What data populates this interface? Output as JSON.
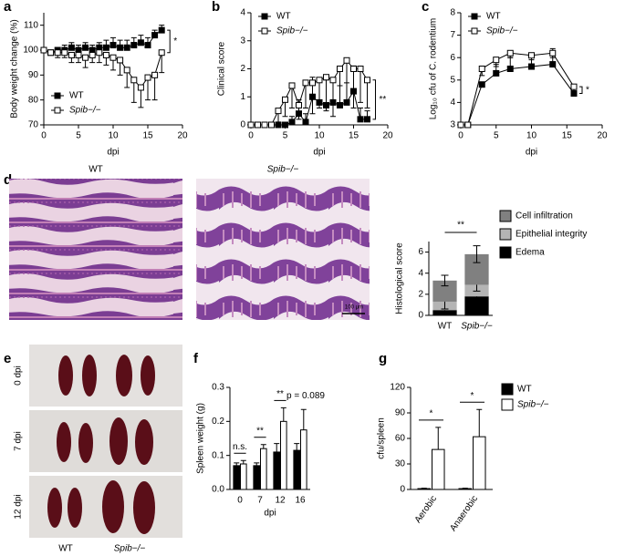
{
  "chart_data": [
    {
      "type": "line",
      "panel_label": "a",
      "ylabel": "Body weight change (%)",
      "xlabel": "dpi",
      "x": [
        0,
        1,
        2,
        3,
        4,
        5,
        6,
        7,
        8,
        9,
        10,
        11,
        12,
        13,
        14,
        15,
        16,
        17
      ],
      "xlim": [
        0,
        20
      ],
      "xticks": [
        0,
        5,
        10,
        15,
        20
      ],
      "ylim": [
        70,
        115
      ],
      "yticks": [
        70,
        80,
        90,
        100,
        110
      ],
      "legend": "lower left",
      "annotations": [
        "*"
      ],
      "series": [
        {
          "name": "WT",
          "color": "#000000",
          "marker_fill": "#000000",
          "values": [
            100,
            99,
            100,
            100,
            101,
            100,
            101,
            100,
            101,
            101,
            102,
            101,
            101,
            102,
            103,
            102,
            106,
            108
          ],
          "errors": [
            1,
            1,
            1,
            2,
            2,
            2,
            2,
            2,
            2,
            3,
            3,
            3,
            3,
            3,
            3,
            3,
            2,
            2
          ]
        },
        {
          "name": "Spib−/−",
          "color": "#000000",
          "marker_fill": "#ffffff",
          "values": [
            100,
            99,
            99,
            99,
            98,
            98,
            97,
            98,
            99,
            98,
            97,
            96,
            92,
            88,
            85,
            89,
            90,
            99
          ],
          "errors": [
            1,
            1,
            2,
            2,
            3,
            3,
            4,
            3,
            4,
            4,
            5,
            6,
            7,
            9,
            8,
            9,
            10,
            8
          ]
        }
      ]
    },
    {
      "type": "line",
      "panel_label": "b",
      "ylabel": "Clinical score",
      "xlabel": "dpi",
      "x": [
        0,
        1,
        2,
        3,
        4,
        5,
        6,
        7,
        8,
        9,
        10,
        11,
        12,
        13,
        14,
        15,
        16,
        17
      ],
      "xlim": [
        0,
        20
      ],
      "xticks": [
        0,
        5,
        10,
        15,
        20
      ],
      "ylim": [
        0,
        4
      ],
      "yticks": [
        0,
        1,
        2,
        3,
        4
      ],
      "legend": "upper left",
      "annotations": [
        "**"
      ],
      "series": [
        {
          "name": "WT",
          "color": "#000000",
          "marker_fill": "#000000",
          "values": [
            0,
            0,
            0,
            0,
            0,
            0,
            0.1,
            0.4,
            0.1,
            1.0,
            0.8,
            0.7,
            0.8,
            0.7,
            0.8,
            1.2,
            0.2,
            0.2
          ],
          "errors": [
            0,
            0,
            0,
            0,
            0,
            0,
            0.2,
            0.5,
            0.3,
            0.7,
            0.8,
            0.9,
            0.8,
            0.7,
            0.7,
            0.9,
            0.4,
            0.3
          ]
        },
        {
          "name": "Spib−/−",
          "color": "#000000",
          "marker_fill": "#ffffff",
          "values": [
            0,
            0,
            0,
            0,
            0.5,
            0.9,
            1.4,
            0.7,
            1.5,
            1.5,
            1.6,
            1.7,
            1.6,
            2.0,
            2.3,
            2.0,
            2.0,
            1.6
          ],
          "errors": [
            0,
            0,
            0,
            0,
            0.4,
            0.6,
            0.8,
            0.5,
            0.9,
            1.1,
            1.0,
            1.2,
            1.3,
            1.4,
            1.5,
            1.4,
            1.2,
            1.0
          ]
        }
      ]
    },
    {
      "type": "line",
      "panel_label": "c",
      "ylabel": "Log₁₀ cfu of C. rodentium",
      "xlabel": "dpi",
      "x": [
        0,
        1,
        3,
        5,
        7,
        10,
        13,
        16
      ],
      "xlim": [
        0,
        20
      ],
      "xticks": [
        0,
        5,
        10,
        15,
        20
      ],
      "ylim": [
        3,
        8
      ],
      "yticks": [
        3,
        4,
        5,
        6,
        7,
        8
      ],
      "legend": "upper left",
      "annotations": [
        "*"
      ],
      "series": [
        {
          "name": "WT",
          "color": "#000000",
          "marker_fill": "#000000",
          "values": [
            3,
            3,
            4.8,
            5.3,
            5.5,
            5.6,
            5.7,
            4.4
          ],
          "errors": [
            0,
            0,
            0.1,
            0.4,
            0.5,
            0.6,
            0.7,
            0.1
          ]
        },
        {
          "name": "Spib−/−",
          "color": "#000000",
          "marker_fill": "#ffffff",
          "values": [
            3,
            3,
            5.5,
            5.9,
            6.2,
            6.1,
            6.2,
            4.7
          ],
          "errors": [
            0,
            0,
            0.3,
            0.3,
            0.2,
            0.2,
            0.2,
            0.3
          ]
        }
      ]
    },
    {
      "type": "stacked_bar",
      "ylabel": "Histological score",
      "categories": [
        "WT",
        "Spib−/−"
      ],
      "ylim": [
        0,
        7
      ],
      "yticks": [
        0,
        2,
        4,
        6
      ],
      "legend": "right",
      "annotations": [
        "**"
      ],
      "series": [
        {
          "name": "Cell infiltration",
          "color": "#808080",
          "values": [
            2.0,
            2.9
          ],
          "errors": [
            0.5,
            0.8
          ]
        },
        {
          "name": "Epithelial integrity",
          "color": "#b4b4b4",
          "values": [
            0.8,
            1.1
          ],
          "errors": [
            0.7,
            0.6
          ]
        },
        {
          "name": "Edema",
          "color": "#000000",
          "values": [
            0.5,
            1.8
          ],
          "errors": [
            0.5,
            1.0
          ]
        }
      ]
    },
    {
      "type": "bar",
      "panel_label": "f",
      "ylabel": "Spleen weight (g)",
      "xlabel": "dpi",
      "categories": [
        "0",
        "7",
        "12",
        "16"
      ],
      "ylim": [
        0,
        0.3
      ],
      "yticks": [
        {
          "value": 0,
          "label": "0.0"
        },
        0.1,
        0.2,
        0.3
      ],
      "annotations": [
        "n.s.",
        "**",
        "**",
        "p = 0.089"
      ],
      "series": [
        {
          "name": "WT",
          "color": "#000000",
          "values": [
            0.07,
            0.07,
            0.11,
            0.115
          ],
          "errors": [
            0.008,
            0.008,
            0.025,
            0.02
          ]
        },
        {
          "name": "Spib−/−",
          "color": "#ffffff",
          "values": [
            0.075,
            0.12,
            0.2,
            0.175
          ],
          "errors": [
            0.01,
            0.012,
            0.04,
            0.06
          ]
        }
      ]
    },
    {
      "type": "bar",
      "panel_label": "g",
      "ylabel": "cfu/spleen",
      "categories": [
        "Aerobic",
        "Anaerobic"
      ],
      "ylim": [
        0,
        120
      ],
      "yticks": [
        0,
        30,
        60,
        90,
        120
      ],
      "legend": "upper right",
      "annotations": [
        "*",
        "*"
      ],
      "series": [
        {
          "name": "WT",
          "color": "#000000",
          "values": [
            1,
            1
          ],
          "errors": [
            0.5,
            0.5
          ]
        },
        {
          "name": "Spib−/−",
          "color": "#ffffff",
          "values": [
            47,
            62
          ],
          "errors": [
            26,
            32
          ]
        }
      ]
    }
  ],
  "images": {
    "d": {
      "panel_label": "d",
      "titles": [
        "WT",
        "Spib−/−"
      ],
      "scale_bar": "100 μm"
    },
    "e": {
      "panel_label": "e",
      "rows": [
        "0 dpi",
        "7 dpi",
        "12 dpi"
      ],
      "columns": [
        "WT",
        "Spib−/−"
      ]
    }
  }
}
